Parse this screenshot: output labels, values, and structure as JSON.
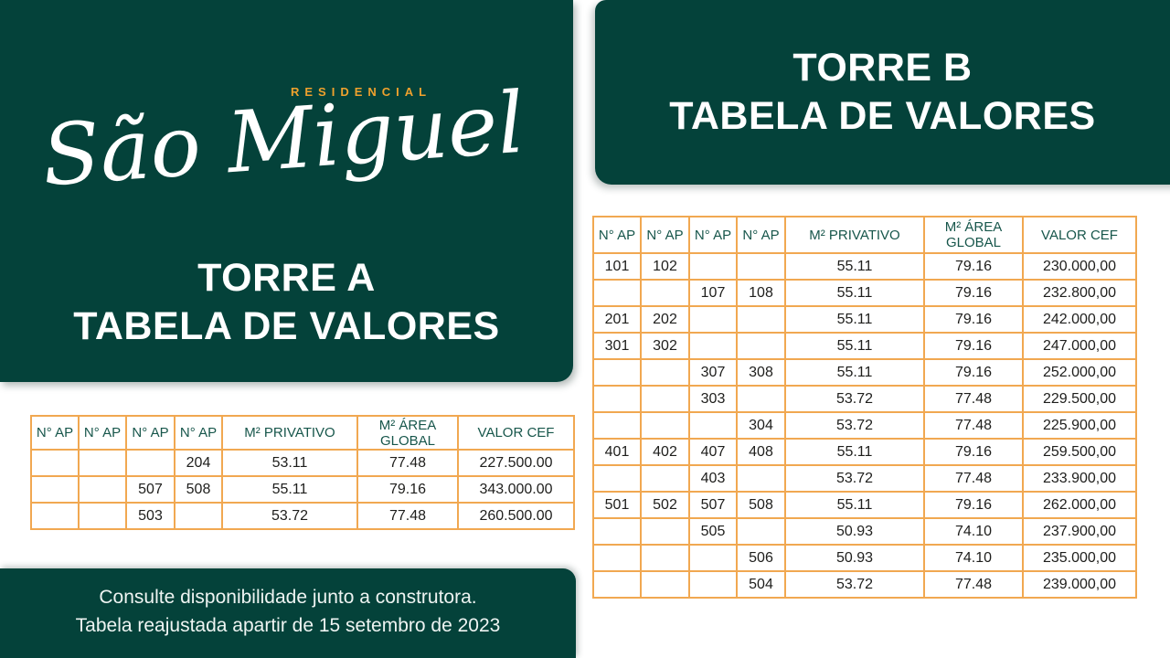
{
  "brand": {
    "residencial_label": "RESIDENCIAL",
    "logo_text": "São Miguel"
  },
  "panels": {
    "torre_a": {
      "title_line1": "TORRE A",
      "title_line2": "TABELA DE VALORES"
    },
    "torre_b": {
      "title_line1": "TORRE B",
      "title_line2": "TABELA DE VALORES"
    }
  },
  "tables": {
    "torre_a": {
      "headers": [
        "N° AP",
        "N° AP",
        "N° AP",
        "N° AP",
        "M² PRIVATIVO",
        "M² ÁREA GLOBAL",
        "VALOR CEF"
      ],
      "rows": [
        [
          "",
          "",
          "",
          "204",
          "53.11",
          "77.48",
          "227.500.00"
        ],
        [
          "",
          "",
          "507",
          "508",
          "55.11",
          "79.16",
          "343.000.00"
        ],
        [
          "",
          "",
          "503",
          "",
          "53.72",
          "77.48",
          "260.500.00"
        ]
      ]
    },
    "torre_b": {
      "headers": [
        "N° AP",
        "N° AP",
        "N° AP",
        "N° AP",
        "M² PRIVATIVO",
        "M² ÁREA GLOBAL",
        "VALOR CEF"
      ],
      "rows": [
        [
          "101",
          "102",
          "",
          "",
          "55.11",
          "79.16",
          "230.000,00"
        ],
        [
          "",
          "",
          "107",
          "108",
          "55.11",
          "79.16",
          "232.800,00"
        ],
        [
          "201",
          "202",
          "",
          "",
          "55.11",
          "79.16",
          "242.000,00"
        ],
        [
          "301",
          "302",
          "",
          "",
          "55.11",
          "79.16",
          "247.000,00"
        ],
        [
          "",
          "",
          "307",
          "308",
          "55.11",
          "79.16",
          "252.000,00"
        ],
        [
          "",
          "",
          "303",
          "",
          "53.72",
          "77.48",
          "229.500,00"
        ],
        [
          "",
          "",
          "",
          "304",
          "53.72",
          "77.48",
          "225.900,00"
        ],
        [
          "401",
          "402",
          "407",
          "408",
          "55.11",
          "79.16",
          "259.500,00"
        ],
        [
          "",
          "",
          "403",
          "",
          "53.72",
          "77.48",
          "233.900,00"
        ],
        [
          "501",
          "502",
          "507",
          "508",
          "55.11",
          "79.16",
          "262.000,00"
        ],
        [
          "",
          "",
          "505",
          "",
          "50.93",
          "74.10",
          "237.900,00"
        ],
        [
          "",
          "",
          "",
          "506",
          "50.93",
          "74.10",
          "235.000,00"
        ],
        [
          "",
          "",
          "",
          "504",
          "53.72",
          "77.48",
          "239.000,00"
        ]
      ]
    }
  },
  "footer": {
    "line1": "Consulte disponibilidade junto a construtora.",
    "line2": "Tabela reajustada apartir de 15 setembro de 2023"
  },
  "colors": {
    "brand_green": "#04423a",
    "table_border_orange": "#f1a851",
    "accent_orange": "#efa12d",
    "header_text_green": "#17564b",
    "cell_text": "#1e1e1c",
    "text_on_green": "#ffffff"
  }
}
